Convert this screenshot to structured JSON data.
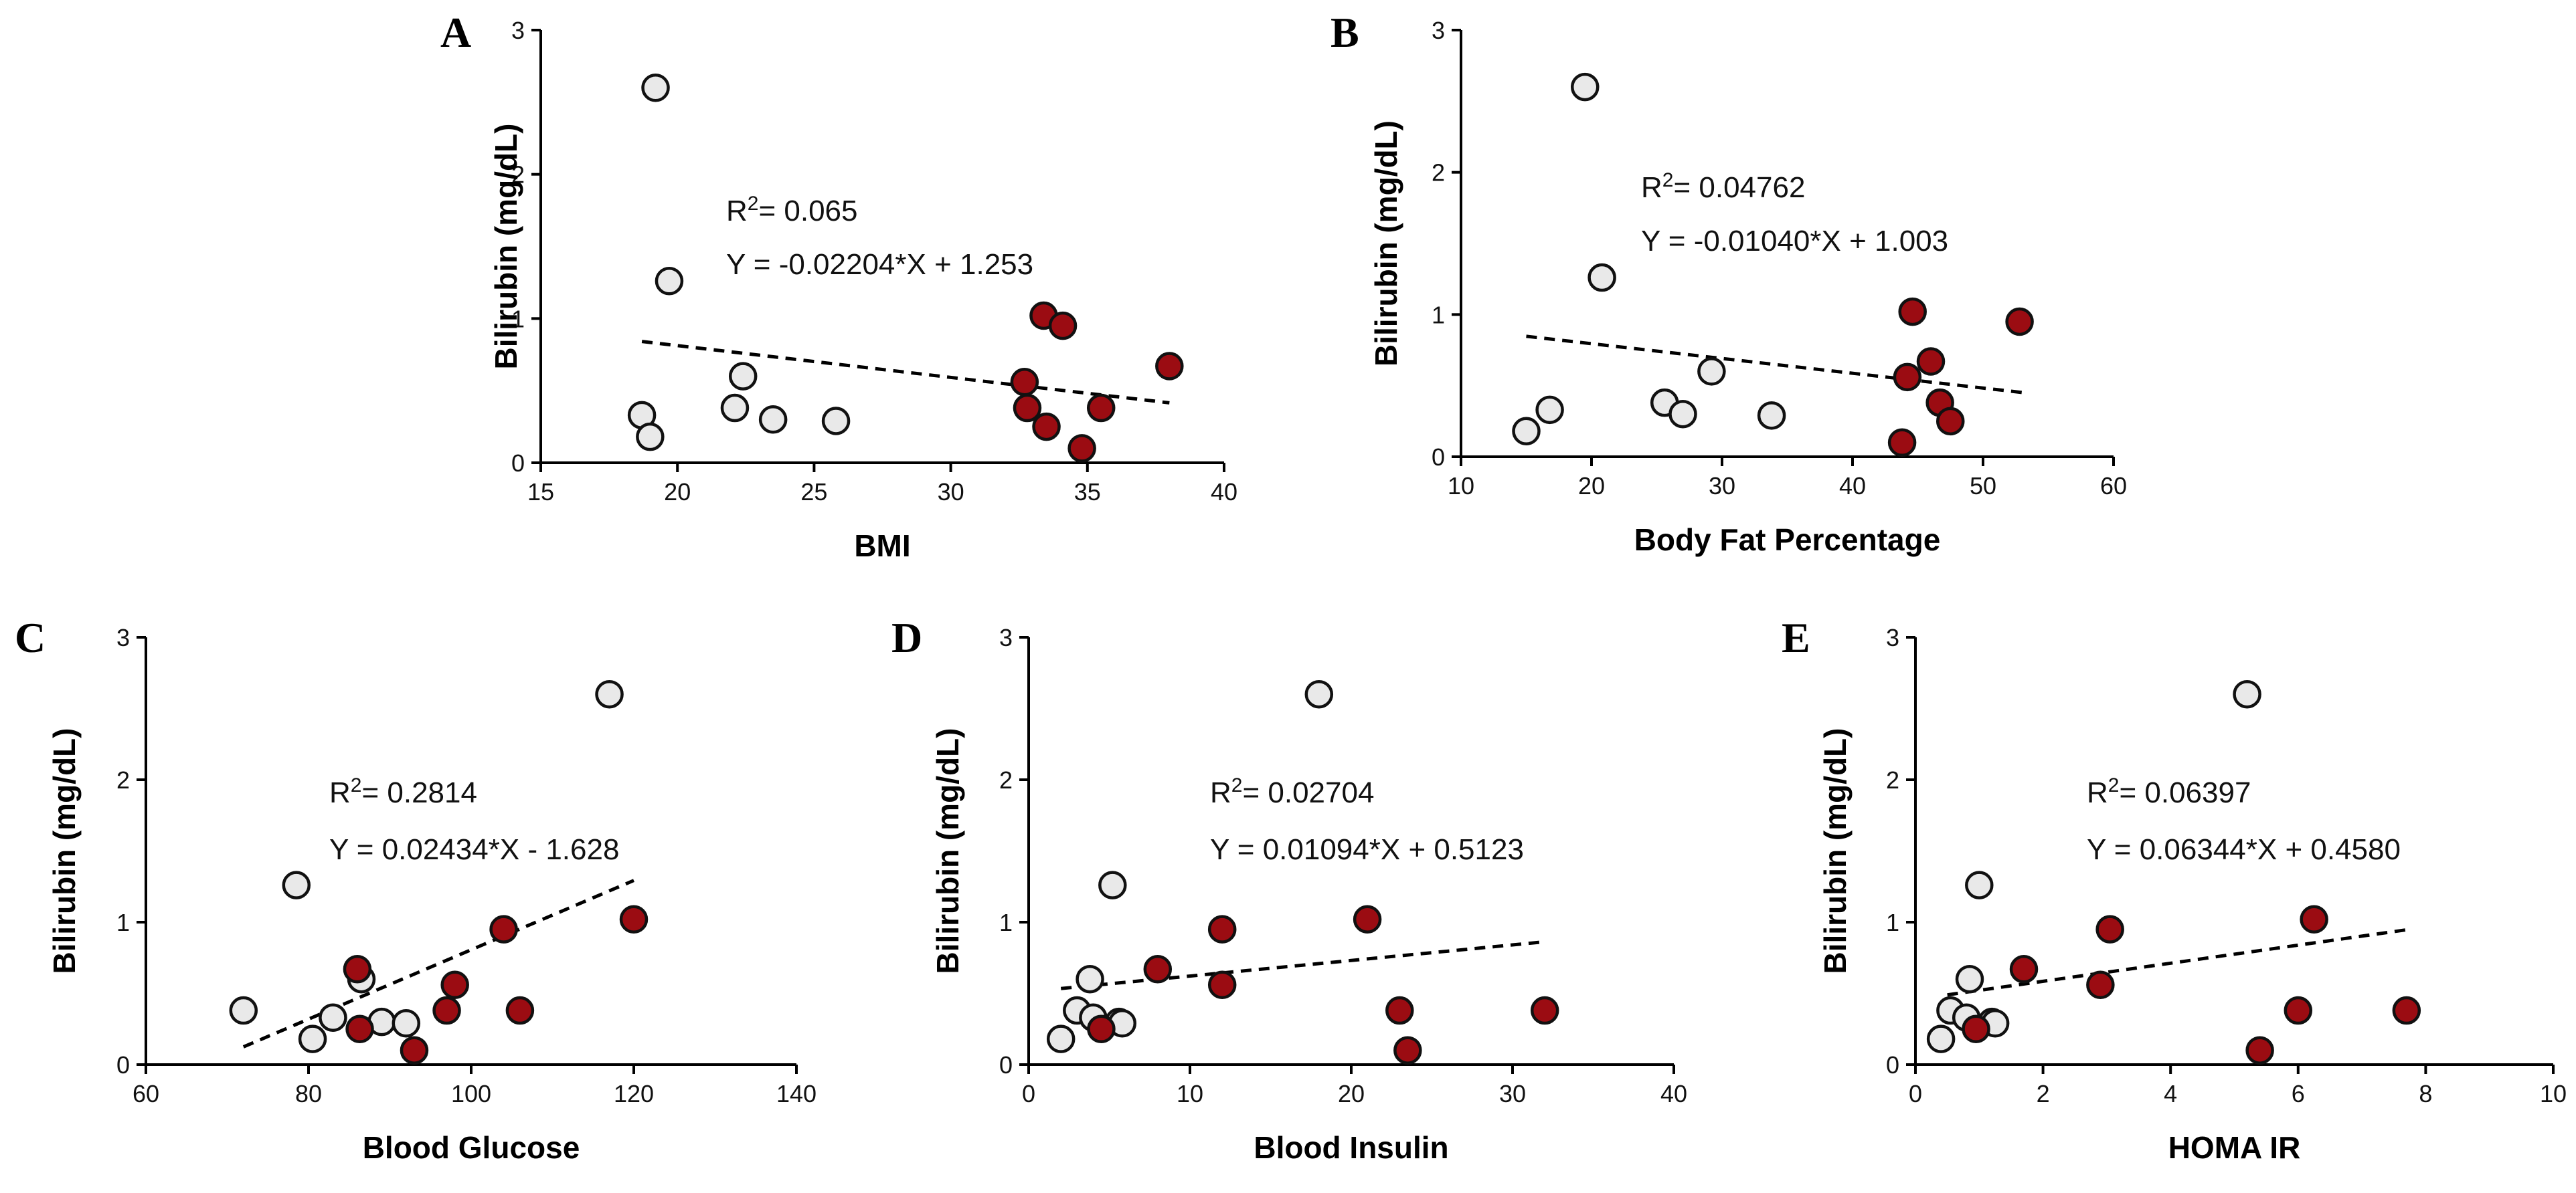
{
  "colors": {
    "group_a": "#9b0c12",
    "group_b": "#e9e9e9"
  },
  "chart_data": [
    {
      "panel": "A",
      "type": "scatter",
      "xlabel": "BMI",
      "ylabel": "Bilirubin (mg/dL)",
      "xlim": [
        15,
        40
      ],
      "xticks": [
        15,
        20,
        25,
        30,
        35,
        40
      ],
      "ylim": [
        0,
        3
      ],
      "yticks": [
        0,
        1,
        2,
        3
      ],
      "r2_label": "R",
      "r2_sup": "2",
      "r2_value": "= 0.065",
      "equation": "Y = -0.02204*X + 1.253",
      "slope": -0.02204,
      "intercept": 1.253,
      "line_x": [
        18.7,
        38
      ],
      "series": [
        {
          "name": "white",
          "points": [
            [
              18.7,
              0.33
            ],
            [
              19.0,
              0.18
            ],
            [
              19.2,
              2.6
            ],
            [
              19.7,
              1.26
            ],
            [
              22.1,
              0.38
            ],
            [
              22.4,
              0.6
            ],
            [
              23.5,
              0.3
            ],
            [
              25.8,
              0.29
            ]
          ]
        },
        {
          "name": "red",
          "points": [
            [
              32.7,
              0.56
            ],
            [
              32.8,
              0.38
            ],
            [
              33.4,
              1.02
            ],
            [
              33.5,
              0.25
            ],
            [
              34.1,
              0.95
            ],
            [
              34.8,
              0.1
            ],
            [
              35.5,
              0.38
            ],
            [
              38.0,
              0.67
            ]
          ]
        }
      ]
    },
    {
      "panel": "B",
      "type": "scatter",
      "xlabel": "Body Fat Percentage",
      "ylabel": "Bilirubin (mg/dL)",
      "xlim": [
        10,
        60
      ],
      "xticks": [
        10,
        20,
        30,
        40,
        50,
        60
      ],
      "ylim": [
        0,
        3
      ],
      "yticks": [
        0,
        1,
        2,
        3
      ],
      "r2_label": "R",
      "r2_sup": "2",
      "r2_value": "= 0.04762",
      "equation": "Y = -0.01040*X + 1.003",
      "slope": -0.0104,
      "intercept": 1.003,
      "line_x": [
        15,
        53
      ],
      "series": [
        {
          "name": "white",
          "points": [
            [
              15.0,
              0.18
            ],
            [
              16.8,
              0.33
            ],
            [
              19.5,
              2.6
            ],
            [
              20.8,
              1.26
            ],
            [
              25.6,
              0.38
            ],
            [
              27.0,
              0.3
            ],
            [
              29.2,
              0.6
            ],
            [
              33.8,
              0.29
            ]
          ]
        },
        {
          "name": "red",
          "points": [
            [
              43.8,
              0.1
            ],
            [
              44.2,
              0.56
            ],
            [
              44.6,
              1.02
            ],
            [
              46.0,
              0.67
            ],
            [
              46.7,
              0.38
            ],
            [
              47.5,
              0.25
            ],
            [
              52.8,
              0.95
            ]
          ]
        }
      ]
    },
    {
      "panel": "C",
      "type": "scatter",
      "xlabel": "Blood Glucose",
      "ylabel": "Bilirubin (mg/dL)",
      "xlim": [
        60,
        140
      ],
      "xticks": [
        60,
        80,
        100,
        120,
        140
      ],
      "ylim": [
        0,
        3
      ],
      "yticks": [
        0,
        1,
        2,
        3
      ],
      "r2_label": "R",
      "r2_sup": "2",
      "r2_value": "= 0.2814",
      "equation": "Y = 0.02434*X - 1.628",
      "slope": 0.02434,
      "intercept": -1.628,
      "line_x": [
        72,
        120
      ],
      "series": [
        {
          "name": "white",
          "points": [
            [
              72.0,
              0.38
            ],
            [
              78.5,
              1.26
            ],
            [
              80.5,
              0.18
            ],
            [
              83.0,
              0.33
            ],
            [
              86.5,
              0.6
            ],
            [
              89.0,
              0.3
            ],
            [
              92.0,
              0.29
            ],
            [
              117.0,
              2.6
            ]
          ]
        },
        {
          "name": "red",
          "points": [
            [
              86.0,
              0.67
            ],
            [
              86.3,
              0.25
            ],
            [
              93.0,
              0.1
            ],
            [
              97.0,
              0.38
            ],
            [
              98.0,
              0.56
            ],
            [
              104.0,
              0.95
            ],
            [
              106.0,
              0.38
            ],
            [
              120.0,
              1.02
            ]
          ]
        }
      ]
    },
    {
      "panel": "D",
      "type": "scatter",
      "xlabel": "Blood Insulin",
      "ylabel": "Bilirubin (mg/dL)",
      "xlim": [
        0,
        40
      ],
      "xticks": [
        0,
        10,
        20,
        30,
        40
      ],
      "ylim": [
        0,
        3
      ],
      "yticks": [
        0,
        1,
        2,
        3
      ],
      "r2_label": "R",
      "r2_sup": "2",
      "r2_value": "= 0.02704",
      "equation": "Y = 0.01094*X + 0.5123",
      "slope": 0.01094,
      "intercept": 0.5123,
      "line_x": [
        2,
        32
      ],
      "series": [
        {
          "name": "white",
          "points": [
            [
              2.0,
              0.18
            ],
            [
              3.0,
              0.38
            ],
            [
              3.8,
              0.6
            ],
            [
              4.0,
              0.33
            ],
            [
              5.2,
              1.26
            ],
            [
              5.6,
              0.3
            ],
            [
              5.8,
              0.29
            ],
            [
              18.0,
              2.6
            ]
          ]
        },
        {
          "name": "red",
          "points": [
            [
              4.5,
              0.25
            ],
            [
              8.0,
              0.67
            ],
            [
              12.0,
              0.56
            ],
            [
              12.0,
              0.95
            ],
            [
              21.0,
              1.02
            ],
            [
              23.0,
              0.38
            ],
            [
              23.5,
              0.1
            ],
            [
              32.0,
              0.38
            ]
          ]
        }
      ]
    },
    {
      "panel": "E",
      "type": "scatter",
      "xlabel": "HOMA IR",
      "ylabel": "Bilirubin (mg/dL)",
      "xlim": [
        0,
        10
      ],
      "xticks": [
        0,
        2,
        4,
        6,
        8,
        10
      ],
      "ylim": [
        0,
        3
      ],
      "yticks": [
        0,
        1,
        2,
        3
      ],
      "r2_label": "R",
      "r2_sup": "2",
      "r2_value": "= 0.06397",
      "equation": "Y = 0.06344*X + 0.4580",
      "slope": 0.06344,
      "intercept": 0.458,
      "line_x": [
        0.5,
        7.7
      ],
      "series": [
        {
          "name": "white",
          "points": [
            [
              0.4,
              0.18
            ],
            [
              0.55,
              0.38
            ],
            [
              0.8,
              0.33
            ],
            [
              0.85,
              0.6
            ],
            [
              1.0,
              1.26
            ],
            [
              1.2,
              0.3
            ],
            [
              1.25,
              0.29
            ],
            [
              5.2,
              2.6
            ]
          ]
        },
        {
          "name": "red",
          "points": [
            [
              0.95,
              0.25
            ],
            [
              1.7,
              0.67
            ],
            [
              2.9,
              0.56
            ],
            [
              3.05,
              0.95
            ],
            [
              5.4,
              0.1
            ],
            [
              6.0,
              0.38
            ],
            [
              6.25,
              1.02
            ],
            [
              7.7,
              0.38
            ]
          ]
        }
      ]
    }
  ]
}
